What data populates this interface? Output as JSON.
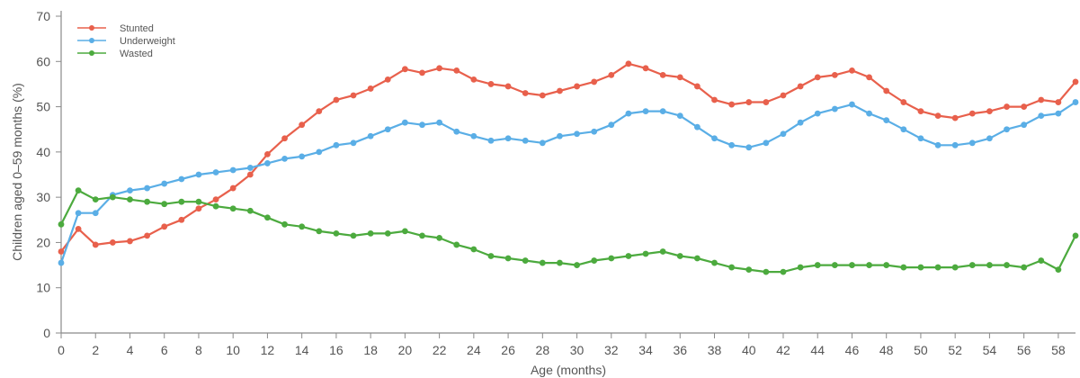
{
  "chart_data": {
    "type": "line",
    "xlabel": "Age (months)",
    "ylabel": "Children aged 0–59 months (%)",
    "xlim": [
      0,
      59
    ],
    "ylim": [
      0,
      70
    ],
    "x_ticks": [
      0,
      2,
      4,
      6,
      8,
      10,
      12,
      14,
      16,
      18,
      20,
      22,
      24,
      26,
      28,
      30,
      32,
      34,
      36,
      38,
      40,
      42,
      44,
      46,
      48,
      50,
      52,
      54,
      56,
      58
    ],
    "y_ticks": [
      0,
      10,
      20,
      30,
      40,
      50,
      60,
      70
    ],
    "grid": "off",
    "legend_position": "top-left",
    "x": [
      0,
      1,
      2,
      3,
      4,
      5,
      6,
      7,
      8,
      9,
      10,
      11,
      12,
      13,
      14,
      15,
      16,
      17,
      18,
      19,
      20,
      21,
      22,
      23,
      24,
      25,
      26,
      27,
      28,
      29,
      30,
      31,
      32,
      33,
      34,
      35,
      36,
      37,
      38,
      39,
      40,
      41,
      42,
      43,
      44,
      45,
      46,
      47,
      48,
      49,
      50,
      51,
      52,
      53,
      54,
      55,
      56,
      57,
      58,
      59
    ],
    "series": [
      {
        "name": "Stunted",
        "color": "#e8604c",
        "values": [
          18,
          23,
          19.5,
          20,
          20.3,
          21.5,
          23.5,
          25,
          27.5,
          29.5,
          32,
          35,
          39.5,
          43,
          46,
          49,
          51.5,
          52.5,
          54,
          56,
          58.3,
          57.5,
          58.5,
          58,
          56,
          55,
          54.5,
          53,
          52.5,
          53.5,
          54.5,
          55.5,
          57,
          59.5,
          58.5,
          57,
          56.5,
          54.5,
          51.5,
          50.5,
          51,
          51,
          52.5,
          54.5,
          56.5,
          57,
          58,
          56.5,
          53.5,
          51,
          49,
          48,
          47.5,
          48.5,
          49,
          50,
          50,
          51.5,
          51,
          55.5
        ]
      },
      {
        "name": "Underweight",
        "color": "#5aaee6",
        "values": [
          15.5,
          26.5,
          26.5,
          30.5,
          31.5,
          32,
          33,
          34,
          35,
          35.5,
          36,
          36.5,
          37.5,
          38.5,
          39,
          40,
          41.5,
          42,
          43.5,
          45,
          46.5,
          46,
          46.5,
          44.5,
          43.5,
          42.5,
          43,
          42.5,
          42,
          43.5,
          44,
          44.5,
          46,
          48.5,
          49,
          49,
          48,
          45.5,
          43,
          41.5,
          41,
          42,
          44,
          46.5,
          48.5,
          49.5,
          50.5,
          48.5,
          47,
          45,
          43,
          41.5,
          41.5,
          42,
          43,
          45,
          46,
          48,
          48.5,
          51
        ]
      },
      {
        "name": "Wasted",
        "color": "#4caa3e",
        "values": [
          24,
          31.5,
          29.5,
          30,
          29.5,
          29,
          28.5,
          29,
          29,
          28,
          27.5,
          27,
          25.5,
          24,
          23.5,
          22.5,
          22,
          21.5,
          22,
          22,
          22.5,
          21.5,
          21,
          19.5,
          18.5,
          17,
          16.5,
          16,
          15.5,
          15.5,
          15,
          16,
          16.5,
          17,
          17.5,
          18,
          17,
          16.5,
          15.5,
          14.5,
          14,
          13.5,
          13.5,
          14.5,
          15,
          15,
          15,
          15,
          15,
          14.5,
          14.5,
          14.5,
          14.5,
          15,
          15,
          15,
          14.5,
          16,
          14,
          21.5
        ]
      }
    ]
  }
}
